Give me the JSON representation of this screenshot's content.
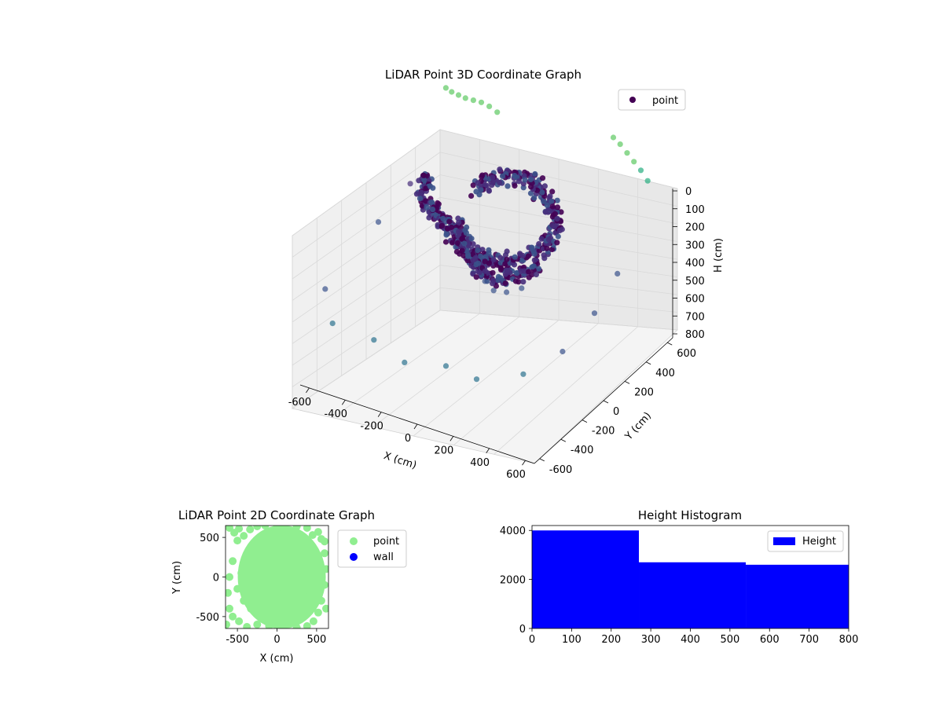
{
  "chart_data": [
    {
      "type": "scatter",
      "projection": "3d",
      "title": "LiDAR Point 3D Coordinate Graph",
      "xlabel": "X (cm)",
      "ylabel": "Y (cm)",
      "zlabel": "H (cm)",
      "xlim": [
        -650,
        650
      ],
      "ylim": [
        -650,
        650
      ],
      "zlim": [
        800,
        0
      ],
      "xticks": [
        "-600",
        "-400",
        "-200",
        "0",
        "200",
        "400",
        "600"
      ],
      "yticks": [
        "-600",
        "-400",
        "-200",
        "0",
        "200",
        "400",
        "600"
      ],
      "zticks": [
        "0",
        "100",
        "200",
        "300",
        "400",
        "500",
        "600",
        "700",
        "800"
      ],
      "colormap": "viridis",
      "legend": {
        "position": "top-right",
        "entries": [
          {
            "label": "point",
            "color": "#440154"
          }
        ]
      },
      "grid": true,
      "series": [
        {
          "name": "point",
          "description_points": "curved dense wall of points plus sparse outliers",
          "points": [
            [
              -420,
              150,
              300
            ],
            [
              -400,
              100,
              280
            ],
            [
              -380,
              60,
              300
            ],
            [
              -340,
              20,
              320
            ],
            [
              -300,
              0,
              330
            ],
            [
              -260,
              -20,
              340
            ],
            [
              -220,
              -40,
              350
            ],
            [
              -180,
              -60,
              360
            ],
            [
              -140,
              -80,
              380
            ],
            [
              -100,
              -100,
              390
            ],
            [
              -60,
              -110,
              400
            ],
            [
              -20,
              -120,
              410
            ],
            [
              20,
              -130,
              420
            ],
            [
              60,
              -130,
              420
            ],
            [
              100,
              -120,
              420
            ],
            [
              140,
              -100,
              420
            ],
            [
              180,
              -80,
              420
            ],
            [
              220,
              -40,
              420
            ],
            [
              260,
              0,
              400
            ],
            [
              280,
              40,
              380
            ],
            [
              300,
              80,
              360
            ],
            [
              300,
              120,
              340
            ],
            [
              290,
              160,
              320
            ],
            [
              260,
              200,
              300
            ],
            [
              220,
              240,
              280
            ],
            [
              180,
              260,
              260
            ],
            [
              140,
              280,
              240
            ],
            [
              100,
              290,
              230
            ],
            [
              60,
              300,
              220
            ],
            [
              0,
              300,
              220
            ],
            [
              -60,
              290,
              230
            ],
            [
              -100,
              270,
              240
            ],
            [
              -140,
              240,
              260
            ],
            [
              -160,
              200,
              280
            ],
            [
              -200,
              100,
              450
            ],
            [
              -150,
              50,
              460
            ],
            [
              -100,
              0,
              480
            ],
            [
              -50,
              -30,
              500
            ],
            [
              0,
              -60,
              520
            ],
            [
              50,
              -70,
              540
            ],
            [
              100,
              -60,
              540
            ],
            [
              150,
              -40,
              540
            ],
            [
              200,
              0,
              520
            ],
            [
              240,
              40,
              500
            ],
            [
              -80,
              60,
              620
            ],
            [
              -20,
              20,
              640
            ],
            [
              40,
              0,
              660
            ],
            [
              100,
              20,
              660
            ],
            [
              160,
              60,
              640
            ],
            [
              -550,
              550,
              50
            ],
            [
              -500,
              520,
              40
            ],
            [
              -450,
              500,
              30
            ],
            [
              -400,
              480,
              20
            ],
            [
              -350,
              470,
              10
            ],
            [
              -300,
              460,
              0
            ],
            [
              -250,
              450,
              0
            ],
            [
              -200,
              440,
              10
            ],
            [
              350,
              600,
              50
            ],
            [
              400,
              580,
              60
            ],
            [
              450,
              560,
              80
            ],
            [
              500,
              540,
              100
            ],
            [
              550,
              520,
              120
            ],
            [
              600,
              500,
              150
            ],
            [
              -600,
              -500,
              600
            ],
            [
              -500,
              -600,
              700
            ],
            [
              -300,
              -550,
              750
            ],
            [
              -100,
              -600,
              780
            ],
            [
              100,
              -550,
              760
            ],
            [
              300,
              -600,
              740
            ],
            [
              500,
              -500,
              700
            ],
            [
              600,
              -300,
              650
            ],
            [
              600,
              0,
              600
            ],
            [
              550,
              300,
              560
            ],
            [
              -600,
              0,
              500
            ],
            [
              -600,
              300,
              450
            ]
          ]
        }
      ]
    },
    {
      "type": "scatter",
      "title": "LiDAR Point 2D Coordinate Graph",
      "xlabel": "X (cm)",
      "ylabel": "Y (cm)",
      "xlim": [
        -650,
        650
      ],
      "ylim": [
        -650,
        650
      ],
      "xticks": [
        "-500",
        "0",
        "500"
      ],
      "yticks": [
        "-500",
        "0",
        "500"
      ],
      "legend": {
        "position": "outside-right",
        "entries": [
          {
            "label": "point",
            "color": "#90ee90"
          },
          {
            "label": "wall",
            "color": "#0000ff"
          }
        ]
      },
      "series": [
        {
          "name": "point",
          "color": "#90ee90",
          "points": [
            [
              -540,
              560
            ],
            [
              -480,
              610
            ],
            [
              -420,
              520
            ],
            [
              -500,
              460
            ],
            [
              -340,
              600
            ],
            [
              -250,
              640
            ],
            [
              -150,
              650
            ],
            [
              0,
              640
            ],
            [
              100,
              650
            ],
            [
              250,
              640
            ],
            [
              380,
              620
            ],
            [
              450,
              530
            ],
            [
              520,
              570
            ],
            [
              560,
              480
            ],
            [
              600,
              300
            ],
            [
              620,
              100
            ],
            [
              600,
              -100
            ],
            [
              560,
              -300
            ],
            [
              520,
              -450
            ],
            [
              460,
              -560
            ],
            [
              380,
              -620
            ],
            [
              250,
              -640
            ],
            [
              100,
              -600
            ],
            [
              0,
              -580
            ],
            [
              -100,
              -620
            ],
            [
              -250,
              -600
            ],
            [
              -380,
              -630
            ],
            [
              -480,
              -560
            ],
            [
              -560,
              -500
            ],
            [
              -600,
              -400
            ],
            [
              -620,
              -200
            ],
            [
              -600,
              0
            ],
            [
              -560,
              200
            ],
            [
              -420,
              -300
            ],
            [
              -400,
              150
            ],
            [
              -350,
              -100
            ],
            [
              -300,
              300
            ],
            [
              -200,
              -400
            ],
            [
              -150,
              450
            ],
            [
              -100,
              0
            ],
            [
              0,
              200
            ],
            [
              0,
              -200
            ],
            [
              100,
              400
            ],
            [
              150,
              -350
            ],
            [
              200,
              100
            ],
            [
              250,
              -100
            ],
            [
              300,
              350
            ],
            [
              350,
              -250
            ],
            [
              400,
              150
            ],
            [
              420,
              -50
            ],
            [
              -450,
              50
            ],
            [
              -500,
              -150
            ],
            [
              -330,
              -400
            ],
            [
              620,
              -400
            ],
            [
              600,
              450
            ],
            [
              -640,
              -600
            ],
            [
              -600,
              620
            ]
          ]
        },
        {
          "name": "wall",
          "color": "#0000ff",
          "points": []
        }
      ]
    },
    {
      "type": "bar",
      "title": "Height Histogram",
      "xlabel": "",
      "ylabel": "",
      "xlim": [
        0,
        800
      ],
      "ylim": [
        0,
        4200
      ],
      "xticks": [
        "0",
        "100",
        "200",
        "300",
        "400",
        "500",
        "600",
        "700",
        "800"
      ],
      "yticks": [
        "0",
        "2000",
        "4000"
      ],
      "legend": {
        "position": "top-right",
        "entries": [
          {
            "label": "Height",
            "color": "#0000ff"
          }
        ]
      },
      "bins": [
        {
          "start": 0,
          "end": 270,
          "count": 4000
        },
        {
          "start": 270,
          "end": 540,
          "count": 2700
        },
        {
          "start": 540,
          "end": 800,
          "count": 2600
        }
      ],
      "color": "#0000ff"
    }
  ],
  "colors": {
    "point_3d": "#440154",
    "point_2d": "#90ee90",
    "wall": "#0000ff",
    "hist": "#0000ff"
  }
}
